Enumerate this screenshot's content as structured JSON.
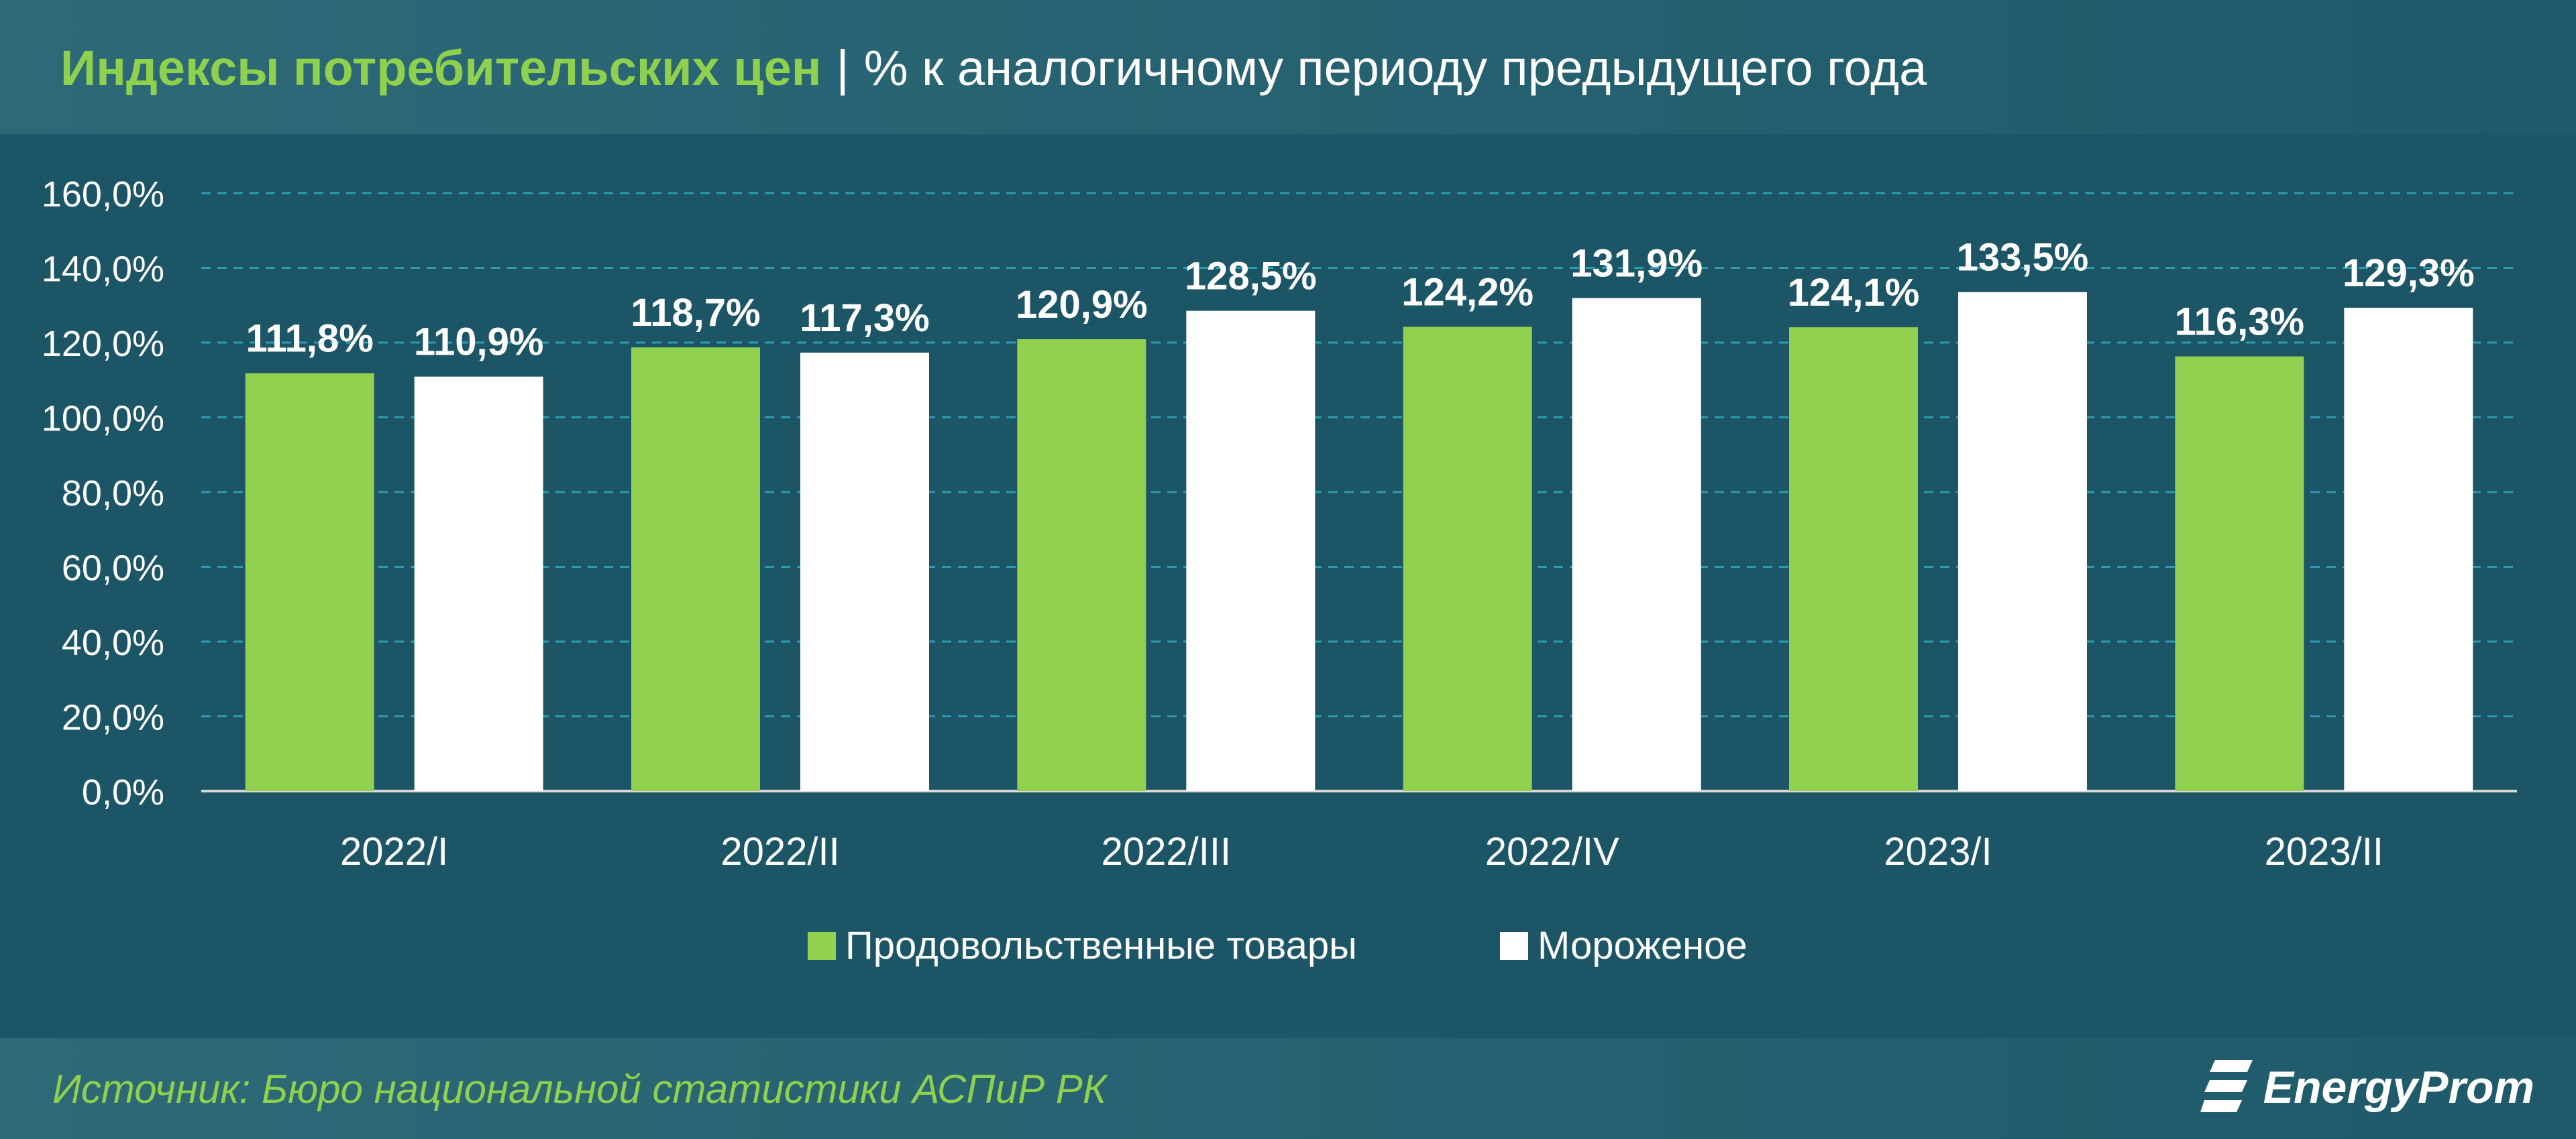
{
  "header": {
    "title_main": "Индексы потребительских цен",
    "title_sep": "|",
    "title_sub": "% к аналогичному периоду предыдущего года"
  },
  "footer": {
    "source": "Источник: Бюро национальной статистики АСПиР РК",
    "logo_text": "EnergyProm",
    "logo_icon": "energyprom-logo-icon"
  },
  "colors": {
    "background": "#1b5566",
    "header_bg": "#2d6977",
    "series_food": "#92d050",
    "series_icecream": "#ffffff",
    "accent": "#8fd14f",
    "grid": "#2e9bb0"
  },
  "chart_data": {
    "type": "bar",
    "categories": [
      "2022/I",
      "2022/II",
      "2022/III",
      "2022/IV",
      "2023/I",
      "2023/II"
    ],
    "series": [
      {
        "name": "Продовольственные товары",
        "values": [
          111.8,
          118.7,
          120.9,
          124.2,
          124.1,
          116.3
        ],
        "labels": [
          "111,8%",
          "118,7%",
          "120,9%",
          "124,2%",
          "124,1%",
          "116,3%"
        ],
        "color": "#92d050"
      },
      {
        "name": "Мороженое",
        "values": [
          110.9,
          117.3,
          128.5,
          131.9,
          133.5,
          129.3
        ],
        "labels": [
          "110,9%",
          "117,3%",
          "128,5%",
          "131,9%",
          "133,5%",
          "129,3%"
        ],
        "color": "#ffffff"
      }
    ],
    "yticks": [
      "0,0%",
      "20,0%",
      "40,0%",
      "60,0%",
      "80,0%",
      "100,0%",
      "120,0%",
      "140,0%",
      "160,0%"
    ],
    "ylim": [
      0,
      160
    ],
    "grid": true,
    "legend_position": "bottom"
  }
}
